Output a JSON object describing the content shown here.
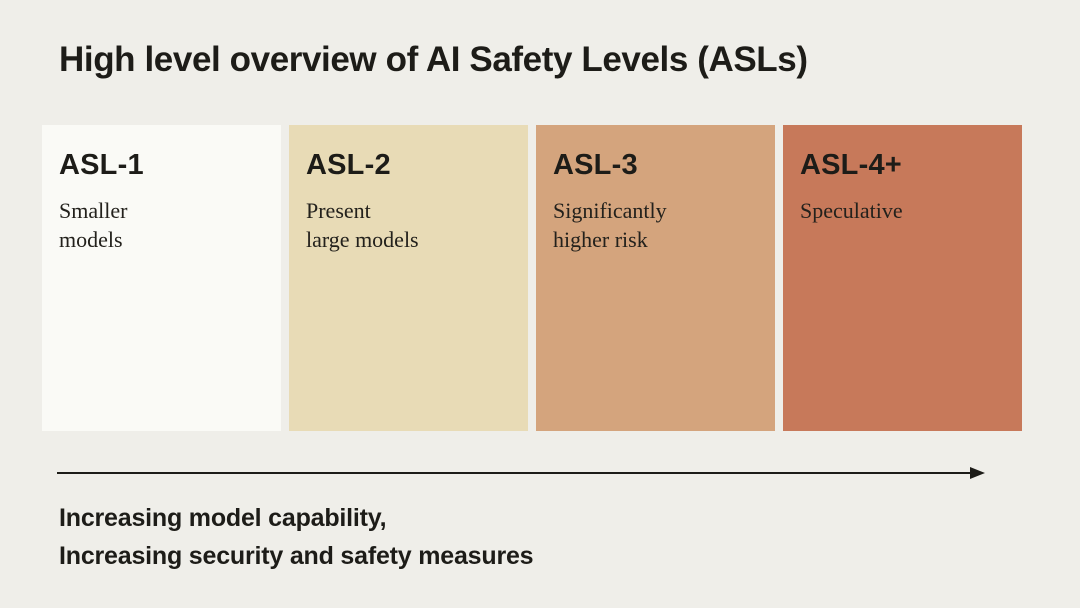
{
  "title": "High level overview of AI Safety Levels (ASLs)",
  "colors": {
    "background": "#efeee9",
    "text": "#1d1c18",
    "arrow": "#1d1c18",
    "asl1_card": "#fafaf6",
    "asl2_card": "#e8dbb6",
    "asl3_card": "#d4a47d",
    "asl4_card": "#c7795a"
  },
  "levels": [
    {
      "label": "ASL-1",
      "desc_lines": [
        "Smaller",
        "models"
      ],
      "color": "#fafaf6"
    },
    {
      "label": "ASL-2",
      "desc_lines": [
        "Present",
        "large models"
      ],
      "color": "#e8dbb6"
    },
    {
      "label": "ASL-3",
      "desc_lines": [
        "Significantly",
        "higher risk"
      ],
      "color": "#d4a47d"
    },
    {
      "label": "ASL-4+",
      "desc_lines": [
        "Speculative"
      ],
      "color": "#c7795a"
    }
  ],
  "axis": {
    "caption_lines": [
      "Increasing model capability,",
      "Increasing security and safety measures"
    ]
  }
}
